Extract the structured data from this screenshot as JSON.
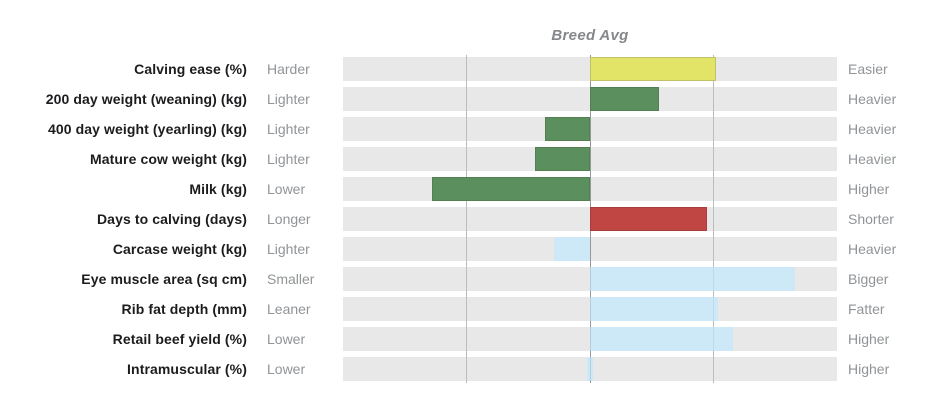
{
  "title": "Breed Avg",
  "palette": {
    "track": "#e8e8e8",
    "gridline": "#bbbcbd",
    "gridline_center": "#96989a",
    "yellow": "#e2e468",
    "green": "#5c8f5e",
    "red": "#c04643",
    "light_blue": "#cde8f7",
    "trait_text": "#1c1c1e",
    "qualifier_text": "#909497",
    "title_text": "#85888b"
  },
  "chart_data": {
    "type": "bar",
    "orientation": "horizontal",
    "title": "Breed Avg",
    "description": "Diverging horizontal bar chart of cattle breeding traits relative to breed average (center line at 50%). Bars extend left (below average) or right (above average). Values are percent of track width, center = 50.",
    "axis": {
      "center_pct": 50,
      "gridlines_pct": [
        25,
        50,
        75
      ],
      "xlim_pct": [
        0,
        100
      ],
      "grid": true,
      "legend": false
    },
    "rows": [
      {
        "trait": "Calving ease (%)",
        "low_label": "Harder",
        "high_label": "Easier",
        "color": "yellow",
        "from_pct": 50,
        "to_pct": 75.5
      },
      {
        "trait": "200 day weight (weaning) (kg)",
        "low_label": "Lighter",
        "high_label": "Heavier",
        "color": "green",
        "from_pct": 50,
        "to_pct": 64
      },
      {
        "trait": "400 day weight (yearling) (kg)",
        "low_label": "Lighter",
        "high_label": "Heavier",
        "color": "green",
        "from_pct": 40.9,
        "to_pct": 50
      },
      {
        "trait": "Mature cow weight (kg)",
        "low_label": "Lighter",
        "high_label": "Heavier",
        "color": "green",
        "from_pct": 38.9,
        "to_pct": 50
      },
      {
        "trait": "Milk (kg)",
        "low_label": "Lower",
        "high_label": "Higher",
        "color": "green",
        "from_pct": 18,
        "to_pct": 50
      },
      {
        "trait": "Days to calving (days)",
        "low_label": "Longer",
        "high_label": "Shorter",
        "color": "red",
        "from_pct": 50,
        "to_pct": 73.7
      },
      {
        "trait": "Carcase weight (kg)",
        "low_label": "Lighter",
        "high_label": "Heavier",
        "color": "blue",
        "from_pct": 42.7,
        "to_pct": 50
      },
      {
        "trait": "Eye muscle area (sq cm)",
        "low_label": "Smaller",
        "high_label": "Bigger",
        "color": "blue",
        "from_pct": 50,
        "to_pct": 91.5
      },
      {
        "trait": "Rib fat depth (mm)",
        "low_label": "Leaner",
        "high_label": "Fatter",
        "color": "blue",
        "from_pct": 50,
        "to_pct": 75.9
      },
      {
        "trait": "Retail beef yield (%)",
        "low_label": "Lower",
        "high_label": "Higher",
        "color": "blue",
        "from_pct": 50,
        "to_pct": 78.9
      },
      {
        "trait": "Intramuscular (%)",
        "low_label": "Lower",
        "high_label": "Higher",
        "color": "blue",
        "from_pct": 49.4,
        "to_pct": 50.6
      }
    ]
  }
}
